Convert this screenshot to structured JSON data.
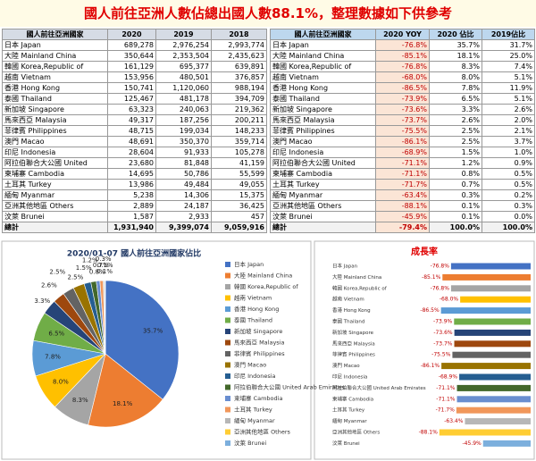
{
  "title": "國人前往亞洲人數佔總出國人數88.1%，整理數據如下供參考",
  "table_left": {
    "header": [
      "國人前往亞洲國家",
      "2020",
      "2019",
      "2018"
    ],
    "rows": [
      [
        "日本 Japan",
        "689,278",
        "2,976,254",
        "2,993,774"
      ],
      [
        "大陸 Mainland China",
        "350,644",
        "2,353,504",
        "2,435,623"
      ],
      [
        "韓國 Korea,Republic of",
        "161,129",
        "695,377",
        "639,891"
      ],
      [
        "越南 Vietnam",
        "153,956",
        "480,501",
        "376,857"
      ],
      [
        "香港 Hong Kong",
        "150,741",
        "1,120,060",
        "988,194"
      ],
      [
        "泰國 Thailand",
        "125,467",
        "481,178",
        "394,709"
      ],
      [
        "新加坡 Singapore",
        "63,323",
        "240,063",
        "219,362"
      ],
      [
        "馬來西亞 Malaysia",
        "49,317",
        "187,256",
        "200,211"
      ],
      [
        "菲律賓 Philippines",
        "48,715",
        "199,034",
        "148,233"
      ],
      [
        "澳門 Macao",
        "48,691",
        "350,370",
        "359,714"
      ],
      [
        "印尼 Indonesia",
        "28,604",
        "91,933",
        "105,278"
      ],
      [
        "阿拉伯聯合大公國 United",
        "23,680",
        "81,848",
        "41,159"
      ],
      [
        "柬埔寨 Cambodia",
        "14,695",
        "50,786",
        "55,599"
      ],
      [
        "土耳其 Turkey",
        "13,986",
        "49,484",
        "49,055"
      ],
      [
        "緬甸 Myanmar",
        "5,238",
        "14,306",
        "15,375"
      ],
      [
        "亞洲其他地區 Others",
        "2,889",
        "24,187",
        "36,425"
      ],
      [
        "汶萊 Brunei",
        "1,587",
        "2,933",
        "457"
      ],
      [
        "總計",
        "1,931,940",
        "9,399,074",
        "9,059,916"
      ]
    ]
  },
  "table_right": {
    "header": [
      "國人前往亞洲國家",
      "2020 YOY",
      "2020 佔比",
      "2019佔比"
    ],
    "rows": [
      [
        "日本 Japan",
        "-76.8%",
        "35.7%",
        "31.7%"
      ],
      [
        "大陸 Mainland China",
        "-85.1%",
        "18.1%",
        "25.0%"
      ],
      [
        "韓國 Korea,Republic of",
        "-76.8%",
        "8.3%",
        "7.4%"
      ],
      [
        "越南 Vietnam",
        "-68.0%",
        "8.0%",
        "5.1%"
      ],
      [
        "香港 Hong Kong",
        "-86.5%",
        "7.8%",
        "11.9%"
      ],
      [
        "泰國 Thailand",
        "-73.9%",
        "6.5%",
        "5.1%"
      ],
      [
        "新加坡 Singapore",
        "-73.6%",
        "3.3%",
        "2.6%"
      ],
      [
        "馬來西亞 Malaysia",
        "-73.7%",
        "2.6%",
        "2.0%"
      ],
      [
        "菲律賓 Philippines",
        "-75.5%",
        "2.5%",
        "2.1%"
      ],
      [
        "澳門 Macao",
        "-86.1%",
        "2.5%",
        "3.7%"
      ],
      [
        "印尼 Indonesia",
        "-68.9%",
        "1.5%",
        "1.0%"
      ],
      [
        "阿拉伯聯合大公國 United",
        "-71.1%",
        "1.2%",
        "0.9%"
      ],
      [
        "柬埔寨 Cambodia",
        "-71.1%",
        "0.8%",
        "0.5%"
      ],
      [
        "土耳其 Turkey",
        "-71.7%",
        "0.7%",
        "0.5%"
      ],
      [
        "緬甸 Myanmar",
        "-63.4%",
        "0.3%",
        "0.2%"
      ],
      [
        "亞洲其他地區 Others",
        "-88.1%",
        "0.1%",
        "0.3%"
      ],
      [
        "汶萊 Brunei",
        "-45.9%",
        "0.1%",
        "0.0%"
      ],
      [
        "總計",
        "-79.4%",
        "100.0%",
        "100.0%"
      ]
    ]
  },
  "chart_data": [
    {
      "type": "pie",
      "title": "2020/01-07 國人前往亞洲國家佔比",
      "categories": [
        "日本 Japan",
        "大陸 Mainland China",
        "韓國 Korea,Republic of",
        "越南 Vietnam",
        "香港 Hong Kong",
        "泰國 Thailand",
        "新加坡 Singapore",
        "馬來西亞 Malaysia",
        "菲律賓 Philippines",
        "澳門 Macao",
        "印尼 Indonesia",
        "阿拉伯聯合大公國 United Arab Emirates",
        "柬埔寨 Cambodia",
        "土耳其 Turkey",
        "緬甸 Myanmar",
        "亞洲其他地區 Others",
        "汶萊 Brunei"
      ],
      "values": [
        35.7,
        18.1,
        8.3,
        8.0,
        7.8,
        6.5,
        3.3,
        2.6,
        2.5,
        2.5,
        1.5,
        1.2,
        0.8,
        0.7,
        0.3,
        0.1,
        0.1
      ],
      "value_labels": [
        "35.7%",
        "18.1%",
        "8.3%",
        "8.0%",
        "7.8%",
        "6.5%",
        "3.3%",
        "2.6%",
        "2.5%",
        "2.5%",
        "1.5%",
        "1.2%",
        "0.8%",
        "0.7%",
        "0.3%",
        "0.1%",
        "0.1%"
      ],
      "colors": [
        "#4472c4",
        "#ed7d31",
        "#a5a5a5",
        "#ffc000",
        "#5b9bd5",
        "#70ad47",
        "#264478",
        "#9e480e",
        "#636363",
        "#997300",
        "#255e91",
        "#43682b",
        "#698ed0",
        "#f1975a",
        "#b7b7b7",
        "#ffcd33",
        "#7cafdd"
      ]
    },
    {
      "type": "hbar",
      "title": "成長率",
      "categories": [
        "日本 Japan",
        "大陸 Mainland China",
        "韓國 Korea,Republic of",
        "越南 Vietnam",
        "香港 Hong Kong",
        "泰國 Thailand",
        "新加坡 Singapore",
        "馬來西亞 Malaysia",
        "菲律賓 Philippines",
        "澳門 Macao",
        "印尼 Indonesia",
        "阿拉伯聯合大公國 United Arab Emirates",
        "柬埔寨 Cambodia",
        "土耳其 Turkey",
        "緬甸 Myanmar",
        "亞洲其他地區 Others",
        "汶萊 Brunei"
      ],
      "values": [
        -76.8,
        -85.1,
        -76.8,
        -68.0,
        -86.5,
        -73.9,
        -73.6,
        -73.7,
        -75.5,
        -86.1,
        -68.9,
        -71.1,
        -71.1,
        -71.7,
        -63.4,
        -88.1,
        -45.9
      ],
      "value_labels": [
        "-76.8%",
        "-85.1%",
        "-76.8%",
        "-68.0%",
        "-86.5%",
        "-73.9%",
        "-73.6%",
        "-73.7%",
        "-75.5%",
        "-86.1%",
        "-68.9%",
        "-71.1%",
        "-71.1%",
        "-71.7%",
        "-63.4%",
        "-88.1%",
        "-45.9%"
      ],
      "xlim": [
        -100,
        0
      ],
      "colors": [
        "#4472c4",
        "#ed7d31",
        "#a5a5a5",
        "#ffc000",
        "#5b9bd5",
        "#70ad47",
        "#264478",
        "#9e480e",
        "#636363",
        "#997300",
        "#255e91",
        "#43682b",
        "#698ed0",
        "#f1975a",
        "#b7b7b7",
        "#ffcd33",
        "#7cafdd"
      ]
    }
  ]
}
